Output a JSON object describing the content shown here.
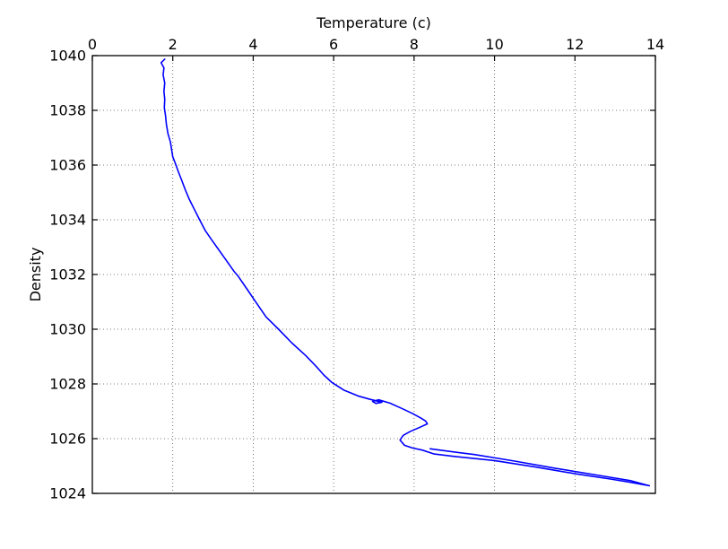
{
  "figure": {
    "background_color": "#ffffff",
    "axis_color": "#000000",
    "grid_color": "#555555",
    "line_color": "#0000ff"
  },
  "chart_data": {
    "type": "line",
    "title": "",
    "xlabel": "Temperature (c)",
    "ylabel": "Density",
    "x_axis_position": "top",
    "xlim": [
      0,
      14
    ],
    "ylim": [
      1024,
      1040
    ],
    "x_ticks": [
      0,
      2,
      4,
      6,
      8,
      10,
      12,
      14
    ],
    "y_ticks": [
      1024,
      1026,
      1028,
      1030,
      1032,
      1034,
      1036,
      1038,
      1040
    ],
    "grid": true,
    "grid_style": "dotted",
    "legend": null,
    "series": [
      {
        "name": "temperature-density-profile",
        "color": "#0000ff",
        "line_width": 1.6,
        "points": [
          [
            1.8,
            1039.87
          ],
          [
            1.71,
            1039.74
          ],
          [
            1.78,
            1039.55
          ],
          [
            1.76,
            1039.3
          ],
          [
            1.8,
            1039.0
          ],
          [
            1.78,
            1038.7
          ],
          [
            1.8,
            1038.4
          ],
          [
            1.79,
            1038.1
          ],
          [
            1.82,
            1037.8
          ],
          [
            1.84,
            1037.5
          ],
          [
            1.88,
            1037.15
          ],
          [
            1.94,
            1036.85
          ],
          [
            2.0,
            1036.3
          ],
          [
            2.08,
            1036.0
          ],
          [
            2.14,
            1035.75
          ],
          [
            2.22,
            1035.45
          ],
          [
            2.31,
            1035.1
          ],
          [
            2.41,
            1034.75
          ],
          [
            2.53,
            1034.4
          ],
          [
            2.66,
            1034.02
          ],
          [
            2.81,
            1033.6
          ],
          [
            2.96,
            1033.28
          ],
          [
            3.12,
            1032.95
          ],
          [
            3.3,
            1032.58
          ],
          [
            3.52,
            1032.12
          ],
          [
            3.62,
            1031.95
          ],
          [
            3.84,
            1031.48
          ],
          [
            4.07,
            1030.98
          ],
          [
            4.32,
            1030.45
          ],
          [
            4.63,
            1030.0
          ],
          [
            4.96,
            1029.5
          ],
          [
            5.31,
            1029.03
          ],
          [
            5.56,
            1028.65
          ],
          [
            5.76,
            1028.32
          ],
          [
            5.96,
            1028.05
          ],
          [
            6.26,
            1027.77
          ],
          [
            6.61,
            1027.56
          ],
          [
            6.9,
            1027.44
          ],
          [
            7.2,
            1027.33
          ],
          [
            7.05,
            1027.29
          ],
          [
            6.97,
            1027.36
          ],
          [
            7.12,
            1027.42
          ],
          [
            7.4,
            1027.3
          ],
          [
            7.7,
            1027.1
          ],
          [
            7.96,
            1026.92
          ],
          [
            8.16,
            1026.76
          ],
          [
            8.29,
            1026.64
          ],
          [
            8.33,
            1026.54
          ],
          [
            8.12,
            1026.4
          ],
          [
            7.9,
            1026.26
          ],
          [
            7.73,
            1026.12
          ],
          [
            7.65,
            1025.95
          ],
          [
            7.76,
            1025.76
          ],
          [
            7.96,
            1025.66
          ],
          [
            8.21,
            1025.58
          ],
          [
            8.5,
            1025.44
          ],
          [
            9.0,
            1025.35
          ],
          [
            10.0,
            1025.2
          ],
          [
            11.0,
            1024.97
          ],
          [
            12.0,
            1024.72
          ],
          [
            12.9,
            1024.52
          ],
          [
            13.4,
            1024.4
          ],
          [
            13.85,
            1024.28
          ],
          [
            13.4,
            1024.46
          ],
          [
            12.5,
            1024.68
          ],
          [
            11.5,
            1024.92
          ],
          [
            10.5,
            1025.18
          ],
          [
            9.5,
            1025.42
          ],
          [
            8.8,
            1025.55
          ],
          [
            8.4,
            1025.63
          ]
        ]
      }
    ]
  }
}
